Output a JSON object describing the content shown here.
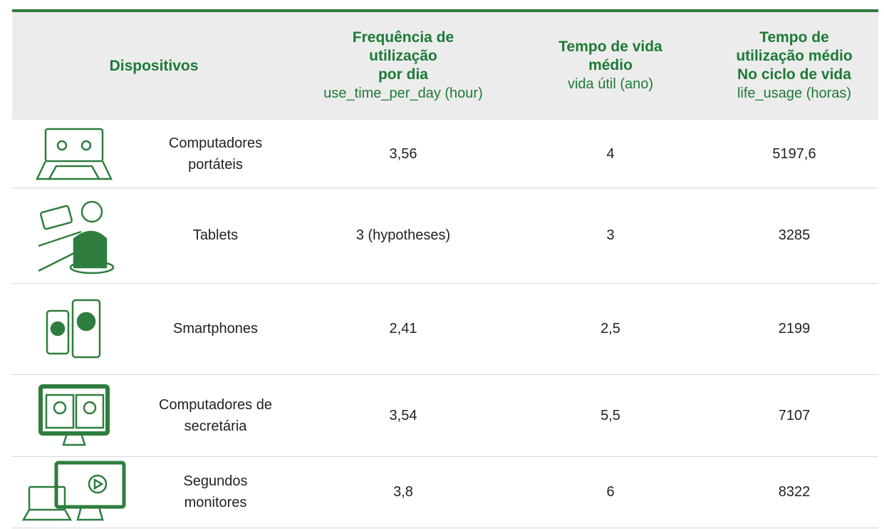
{
  "table": {
    "header": [
      {
        "title": [
          "Dispositivos"
        ],
        "subtitle": null
      },
      {
        "title": [
          "Frequência de",
          "utilização",
          "por dia"
        ],
        "subtitle": "use_time_per_day (hour)"
      },
      {
        "title": [
          "Tempo de vida",
          "médio"
        ],
        "subtitle": "vida útil (ano)"
      },
      {
        "title": [
          "Tempo de",
          "utilização médio",
          "No ciclo de vida"
        ],
        "subtitle": "life_usage (horas)"
      }
    ],
    "rows": [
      {
        "name": [
          "Computadores",
          "portáteis"
        ],
        "values": [
          "3,56",
          "4",
          "5197,6"
        ]
      },
      {
        "name": [
          "Tablets"
        ],
        "values": [
          "3 (hypotheses)",
          "3",
          "3285"
        ]
      },
      {
        "name": [
          "Smartphones"
        ],
        "values": [
          "2,41",
          "2,5",
          "2199"
        ]
      },
      {
        "name": [
          "Computadores de",
          "secretária"
        ],
        "values": [
          "3,54",
          "5,5",
          "7107"
        ]
      },
      {
        "name": [
          "Segundos",
          "monitores"
        ],
        "values": [
          "3,8",
          "6",
          "8322"
        ]
      }
    ]
  }
}
